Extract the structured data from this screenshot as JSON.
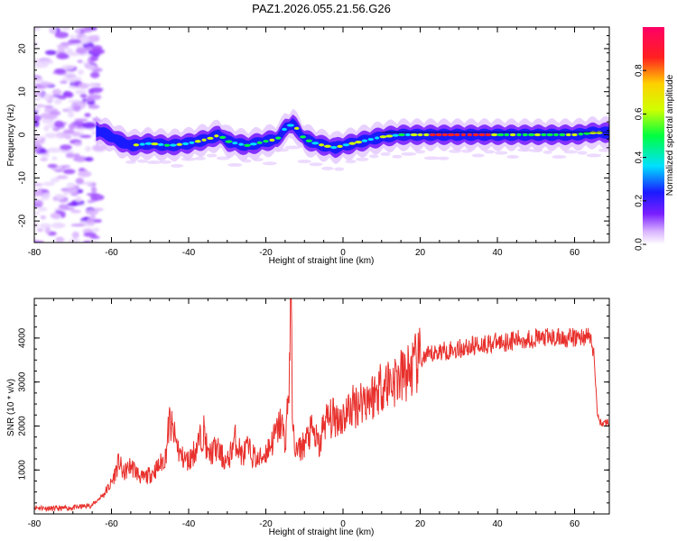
{
  "title": "PAZ1.2026.055.21.56.G26",
  "chart_data": [
    {
      "type": "heatmap",
      "xlabel": "Height of straight line (km)",
      "ylabel": "Frequency (Hz)",
      "xlim": [
        -80,
        69
      ],
      "ylim": [
        -25,
        25
      ],
      "xticks": [
        -80,
        -60,
        -40,
        -20,
        0,
        20,
        40,
        60
      ],
      "yticks": [
        -20,
        -10,
        0,
        10,
        20
      ],
      "colorbar": {
        "label": "Normalized spectral amplitude",
        "range": [
          0,
          1
        ],
        "ticks": [
          "0.0",
          "0.2",
          "0.4",
          "0.6",
          "0.8"
        ],
        "tick_values": [
          0,
          0.2,
          0.4,
          0.6,
          0.8
        ],
        "colors": [
          "#ffffff",
          "#d9b3ff",
          "#7a1fff",
          "#1a1aff",
          "#00e0ff",
          "#00ff40",
          "#d0ff00",
          "#ffd000",
          "#ff2020",
          "#ff0066"
        ]
      },
      "ridge": {
        "x": [
          -65,
          -62,
          -58,
          -55,
          -50,
          -45,
          -40,
          -35,
          -32,
          -30,
          -25,
          -20,
          -17,
          -15,
          -13,
          -12,
          -10,
          -7,
          -5,
          -2,
          0,
          5,
          10,
          15,
          20,
          25,
          30,
          35,
          40,
          45,
          50,
          55,
          60,
          65,
          69
        ],
        "frequency": [
          1.0,
          0.5,
          -1.5,
          -2.5,
          -2.0,
          -2.5,
          -2.0,
          -1.0,
          0.0,
          -1.5,
          -2.5,
          -1.5,
          -1.0,
          1.5,
          2.5,
          1.5,
          -1.0,
          -2.0,
          -2.5,
          -3.0,
          -2.5,
          -1.5,
          -0.5,
          0.0,
          0.0,
          0.0,
          0.0,
          0.0,
          0.0,
          0.0,
          0.0,
          0.0,
          0.0,
          0.5,
          0.5
        ]
      },
      "noise_region_x": [
        -80,
        -63
      ]
    },
    {
      "type": "line",
      "xlabel": "Height of straight line (km)",
      "ylabel": "SNR (10 * v/v)",
      "xlim": [
        -80,
        69
      ],
      "ylim": [
        0,
        4900
      ],
      "xticks": [
        -80,
        -60,
        -40,
        -20,
        0,
        20,
        40,
        60
      ],
      "yticks": [
        1000,
        2000,
        3000,
        4000
      ],
      "color": "#e8302c",
      "series": [
        {
          "x": [
            -80,
            -75,
            -70,
            -65,
            -62,
            -60,
            -58,
            -57,
            -55,
            -52,
            -50,
            -48,
            -46,
            -45,
            -42,
            -40,
            -38,
            -36,
            -35,
            -33,
            -30,
            -28,
            -26,
            -25,
            -22,
            -20,
            -18,
            -16,
            -15,
            -14,
            -13.5,
            -13,
            -12,
            -10,
            -8,
            -6,
            -5,
            -2,
            0,
            2,
            5,
            8,
            10,
            12,
            15,
            18,
            20,
            25,
            30,
            35,
            40,
            45,
            50,
            55,
            60,
            64,
            65,
            66,
            67,
            69
          ],
          "y": [
            150,
            120,
            140,
            200,
            450,
            700,
            1200,
            900,
            1100,
            800,
            900,
            1050,
            1300,
            2100,
            1300,
            1200,
            1500,
            1900,
            1300,
            1500,
            1150,
            1700,
            1300,
            1500,
            1200,
            1400,
            1700,
            2100,
            1600,
            2900,
            4900,
            1800,
            1400,
            1600,
            1900,
            1500,
            2100,
            2200,
            2200,
            2400,
            2600,
            2700,
            2950,
            3000,
            3100,
            3300,
            3500,
            3700,
            3750,
            3850,
            3900,
            3950,
            4000,
            4000,
            4000,
            4050,
            3600,
            2200,
            2050,
            2100
          ]
        }
      ]
    }
  ]
}
